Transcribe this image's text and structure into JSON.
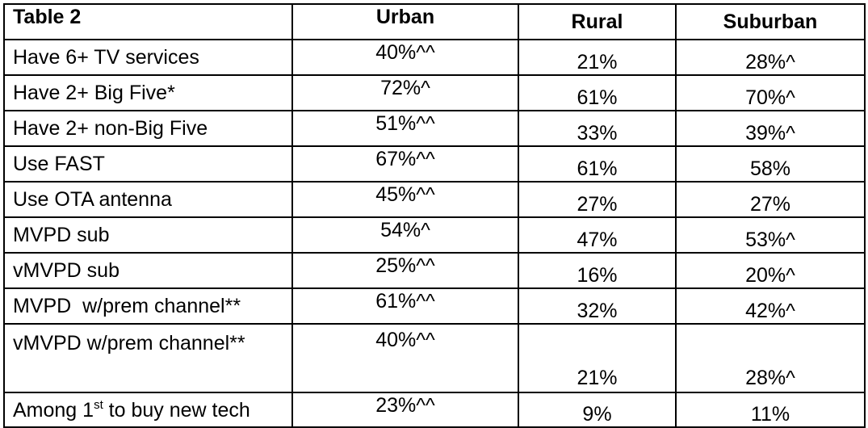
{
  "table": {
    "headers": [
      "Table 2",
      "Urban",
      "Rural",
      "Suburban"
    ],
    "rows": [
      {
        "label": "Have 6+ TV services",
        "urban": "40%^^",
        "rural": "21%",
        "suburban": "28%^"
      },
      {
        "label": "Have 2+ Big Five*",
        "urban": "72%^",
        "rural": "61%",
        "suburban": "70%^"
      },
      {
        "label": "Have 2+ non-Big Five",
        "urban": "51%^^",
        "rural": "33%",
        "suburban": "39%^"
      },
      {
        "label": "Use FAST",
        "urban": "67%^^",
        "rural": "61%",
        "suburban": "58%"
      },
      {
        "label": "Use OTA antenna",
        "urban": "45%^^",
        "rural": "27%",
        "suburban": "27%"
      },
      {
        "label": "MVPD sub",
        "urban": "54%^",
        "rural": "47%",
        "suburban": "53%^"
      },
      {
        "label": "vMVPD sub",
        "urban": "25%^^",
        "rural": "16%",
        "suburban": "20%^"
      },
      {
        "label": "MVPD  w/prem channel**",
        "urban": "61%^^",
        "rural": "32%",
        "suburban": "42%^"
      },
      {
        "label": "vMVPD w/prem channel**",
        "urban": "40%^^",
        "rural": "21%",
        "suburban": "28%^"
      }
    ],
    "last_row": {
      "label_before": "Among 1",
      "label_sup": "st",
      "label_after": " to buy new tech",
      "urban": "23%^^",
      "rural": "9%",
      "suburban": "11%"
    }
  }
}
